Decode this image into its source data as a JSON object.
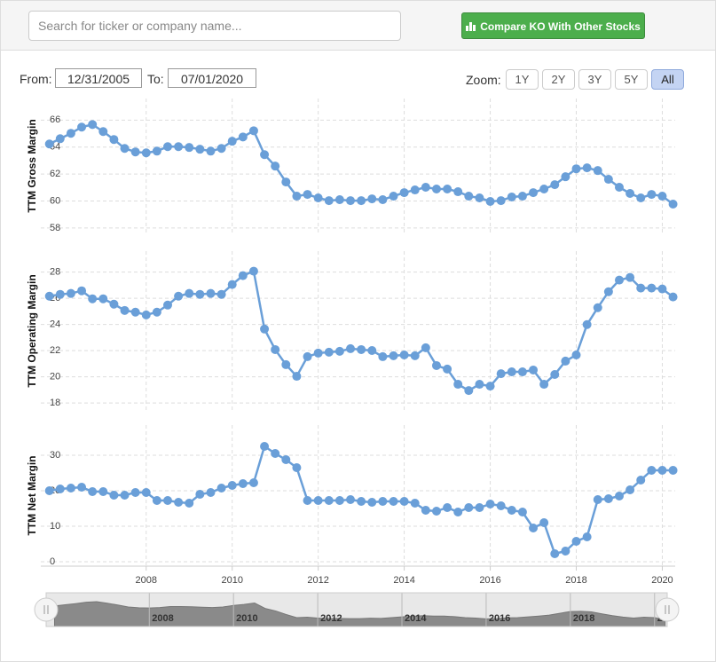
{
  "ui": {
    "search_placeholder": "Search for ticker or company name...",
    "compare_button": "Compare KO With Other Stocks",
    "from_label": "From:",
    "from_date": "12/31/2005",
    "to_label": "To:",
    "to_date": "07/01/2020",
    "zoom_label": "Zoom:",
    "zoom_options": [
      "1Y",
      "2Y",
      "3Y",
      "5Y",
      "All"
    ]
  },
  "chart_data": [
    {
      "type": "line",
      "y_label": "TTM Gross Margin",
      "color": "#6a9fd8",
      "grid": true,
      "x": [
        2005.75,
        2006,
        2006.25,
        2006.5,
        2006.75,
        2007,
        2007.25,
        2007.5,
        2007.75,
        2008,
        2008.25,
        2008.5,
        2008.75,
        2009,
        2009.25,
        2009.5,
        2009.75,
        2010,
        2010.25,
        2010.5,
        2010.75,
        2011,
        2011.25,
        2011.5,
        2011.75,
        2012,
        2012.25,
        2012.5,
        2012.75,
        2013,
        2013.25,
        2013.5,
        2013.75,
        2014,
        2014.25,
        2014.5,
        2014.75,
        2015,
        2015.25,
        2015.5,
        2015.75,
        2016,
        2016.25,
        2016.5,
        2016.75,
        2017,
        2017.25,
        2017.5,
        2017.75,
        2018,
        2018.25,
        2018.5,
        2018.75,
        2019,
        2019.25,
        2019.5,
        2019.75,
        2020,
        2020.25
      ],
      "values": [
        64.23,
        64.62,
        65.02,
        65.48,
        65.67,
        65.15,
        64.56,
        63.9,
        63.64,
        63.57,
        63.7,
        64.03,
        64.03,
        63.97,
        63.84,
        63.7,
        63.9,
        64.43,
        64.75,
        65.21,
        63.44,
        62.59,
        61.41,
        60.36,
        60.49,
        60.23,
        60.03,
        60.1,
        60.03,
        60.03,
        60.16,
        60.1,
        60.36,
        60.62,
        60.82,
        61.02,
        60.89,
        60.89,
        60.69,
        60.36,
        60.23,
        59.97,
        60.03,
        60.3,
        60.36,
        60.62,
        60.89,
        61.21,
        61.8,
        62.39,
        62.46,
        62.26,
        61.61,
        61.02,
        60.56,
        60.23,
        60.49,
        60.36,
        59.77
      ],
      "xlim": [
        2005.55,
        2020.3
      ],
      "ylim": [
        57.6,
        67.6
      ],
      "yticks": [
        58,
        60,
        62,
        64,
        66
      ]
    },
    {
      "type": "line",
      "y_label": "TTM Operating Margin",
      "color": "#6a9fd8",
      "grid": true,
      "x": [
        2005.75,
        2006,
        2006.25,
        2006.5,
        2006.75,
        2007,
        2007.25,
        2007.5,
        2007.75,
        2008,
        2008.25,
        2008.5,
        2008.75,
        2009,
        2009.25,
        2009.5,
        2009.75,
        2010,
        2010.25,
        2010.5,
        2010.75,
        2011,
        2011.25,
        2011.5,
        2011.75,
        2012,
        2012.25,
        2012.5,
        2012.75,
        2013,
        2013.25,
        2013.5,
        2013.75,
        2014,
        2014.25,
        2014.5,
        2014.75,
        2015,
        2015.25,
        2015.5,
        2015.75,
        2016,
        2016.25,
        2016.5,
        2016.75,
        2017,
        2017.25,
        2017.5,
        2017.75,
        2018,
        2018.25,
        2018.5,
        2018.75,
        2019,
        2019.25,
        2019.5,
        2019.75,
        2020,
        2020.25
      ],
      "values": [
        26.16,
        26.3,
        26.37,
        26.57,
        25.96,
        25.96,
        25.55,
        25.07,
        24.94,
        24.73,
        24.94,
        25.48,
        26.16,
        26.37,
        26.3,
        26.37,
        26.3,
        27.05,
        27.73,
        28.07,
        23.65,
        22.08,
        20.93,
        20.04,
        21.54,
        21.81,
        21.88,
        21.95,
        22.15,
        22.08,
        22.01,
        21.54,
        21.61,
        21.67,
        21.61,
        22.22,
        20.86,
        20.59,
        19.43,
        18.95,
        19.43,
        19.29,
        20.24,
        20.38,
        20.38,
        20.52,
        19.43,
        20.18,
        21.2,
        21.67,
        23.99,
        25.28,
        26.5,
        27.39,
        27.59,
        26.78,
        26.78,
        26.71,
        26.1
      ],
      "xlim": [
        2005.55,
        2020.3
      ],
      "ylim": [
        17.4,
        29.6
      ],
      "yticks": [
        18,
        20,
        22,
        24,
        26,
        28
      ]
    },
    {
      "type": "line",
      "y_label": "TTM Net Margin",
      "color": "#6a9fd8",
      "grid": true,
      "x": [
        2005.75,
        2006,
        2006.25,
        2006.5,
        2006.75,
        2007,
        2007.25,
        2007.5,
        2007.75,
        2008,
        2008.25,
        2008.5,
        2008.75,
        2009,
        2009.25,
        2009.5,
        2009.75,
        2010,
        2010.25,
        2010.5,
        2010.75,
        2011,
        2011.25,
        2011.5,
        2011.75,
        2012,
        2012.25,
        2012.5,
        2012.75,
        2013,
        2013.25,
        2013.5,
        2013.75,
        2014,
        2014.25,
        2014.5,
        2014.75,
        2015,
        2015.25,
        2015.5,
        2015.75,
        2016,
        2016.25,
        2016.5,
        2016.75,
        2017,
        2017.25,
        2017.5,
        2017.75,
        2018,
        2018.25,
        2018.5,
        2018.75,
        2019,
        2019.25,
        2019.5,
        2019.75,
        2020,
        2020.25
      ],
      "values": [
        20,
        20.5,
        20.75,
        21,
        19.75,
        19.75,
        18.75,
        18.75,
        19.5,
        19.5,
        17.25,
        17.25,
        16.75,
        16.5,
        19,
        19.5,
        20.75,
        21.5,
        22,
        22.25,
        32.5,
        30.5,
        28.75,
        26.5,
        17.25,
        17.25,
        17.25,
        17.25,
        17.5,
        17,
        16.75,
        17,
        17,
        17,
        16.5,
        14.5,
        14.25,
        15.25,
        14,
        15.25,
        15.25,
        16.25,
        15.75,
        14.5,
        14,
        9.5,
        11,
        2.25,
        3,
        5.75,
        7,
        17.5,
        17.75,
        18.5,
        20.25,
        23,
        25.75,
        25.75,
        25.75
      ],
      "xlim": [
        2005.55,
        2020.3
      ],
      "ylim": [
        -1.25,
        38.5
      ],
      "yticks": [
        0,
        10,
        20,
        30
      ],
      "xticks": [
        2008,
        2010,
        2012,
        2014,
        2016,
        2018,
        2020
      ]
    }
  ]
}
